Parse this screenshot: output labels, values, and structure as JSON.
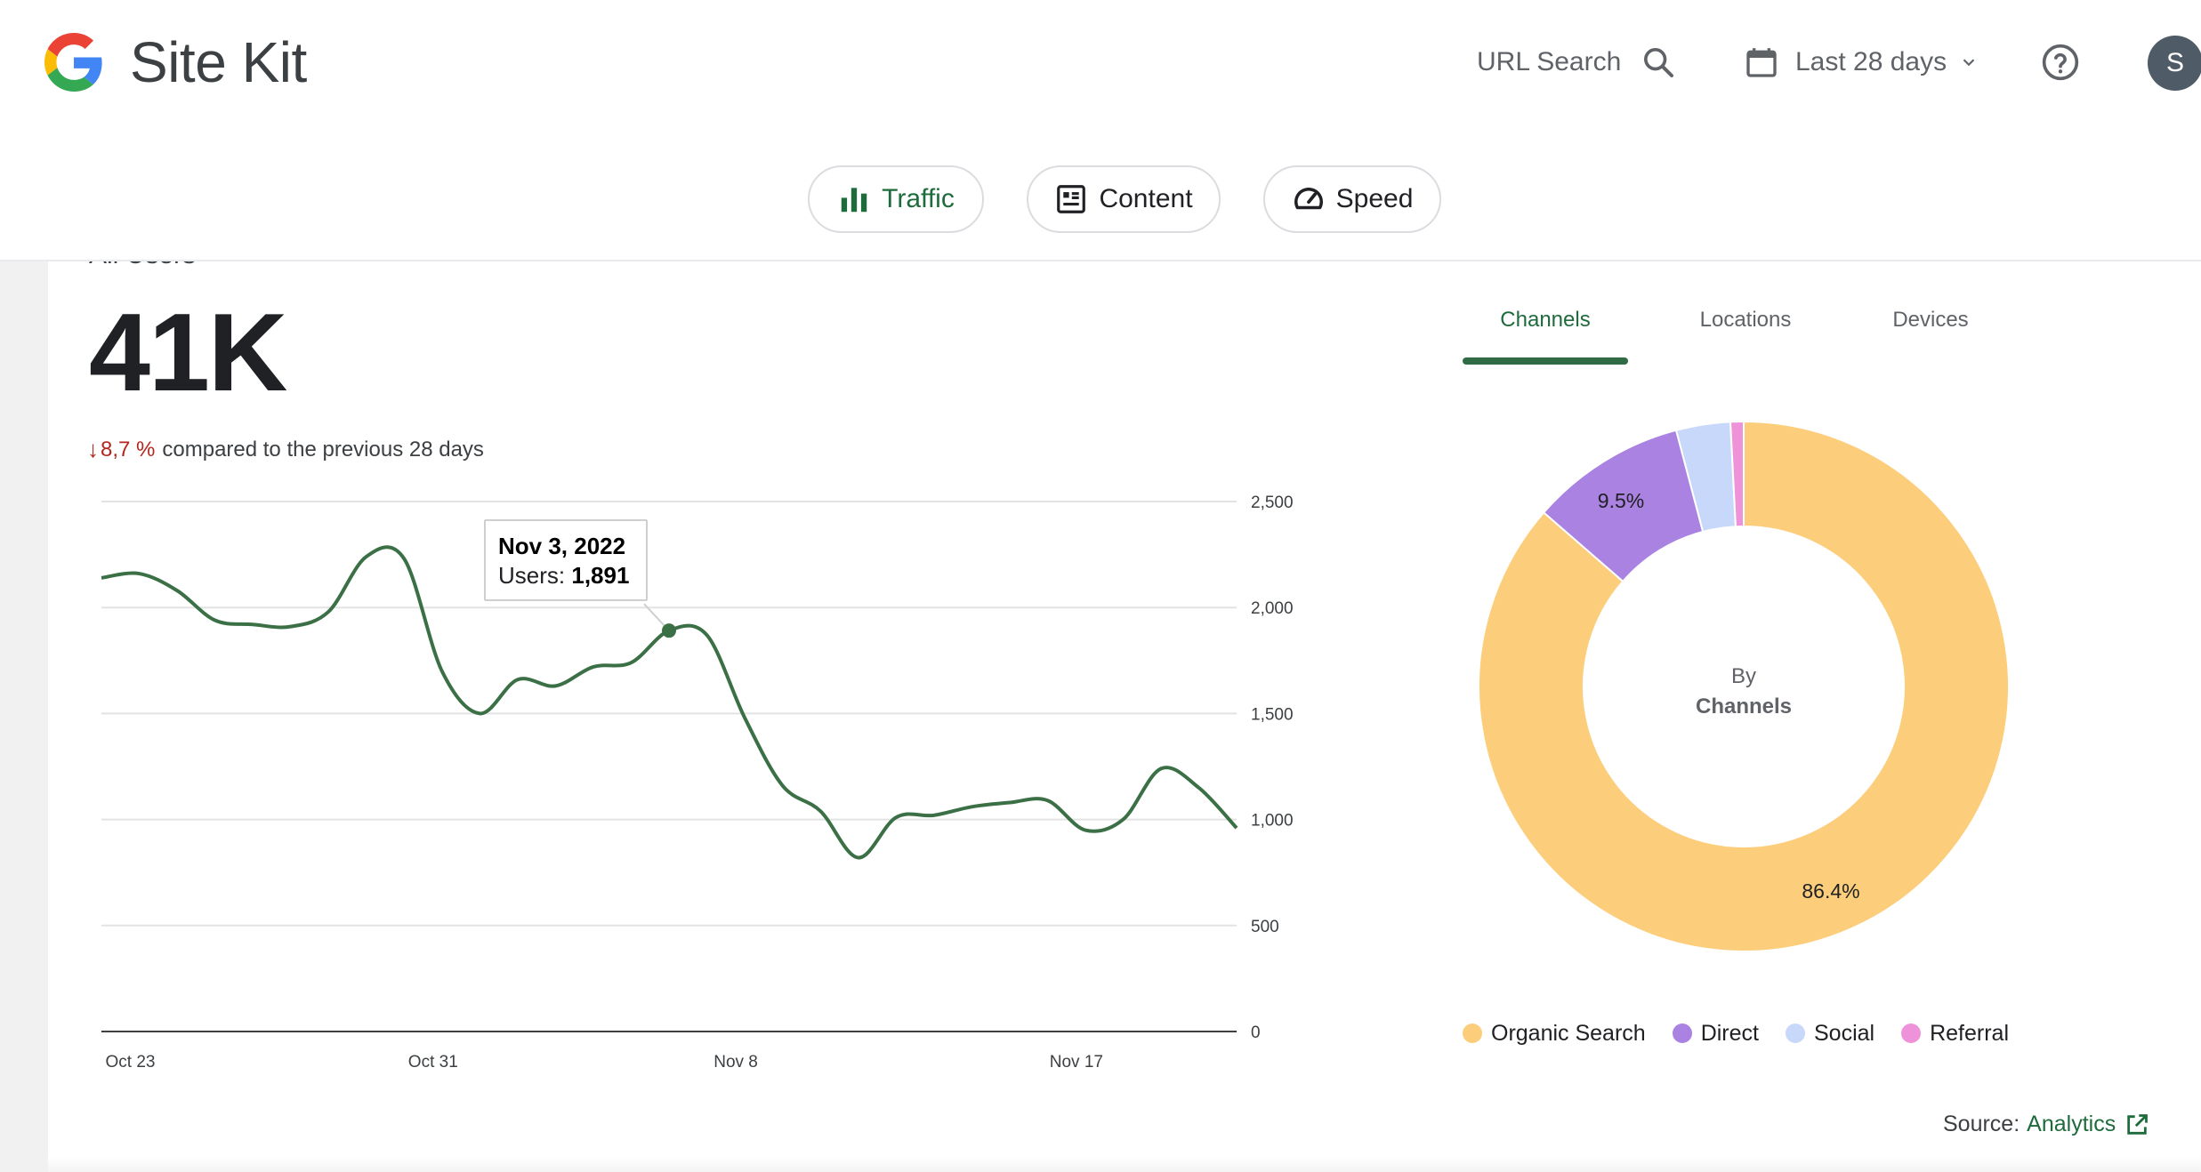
{
  "app": {
    "title": "Site Kit"
  },
  "header": {
    "url_search_label": "URL Search",
    "date_range_label": "Last 28 days",
    "avatar_initial": "S"
  },
  "nav": {
    "tabs": [
      {
        "label": "Traffic",
        "active": true
      },
      {
        "label": "Content",
        "active": false
      },
      {
        "label": "Speed",
        "active": false
      }
    ]
  },
  "metric": {
    "cut_label": "All Users",
    "value": "41K",
    "change_arrow": "↓",
    "change_pct": "8,7 %",
    "change_text": "compared to the previous 28 days"
  },
  "tooltip": {
    "date": "Nov 3, 2022",
    "label": "Users:",
    "value": "1,891"
  },
  "breakdown": {
    "tabs": [
      "Channels",
      "Locations",
      "Devices"
    ],
    "active_tab": "Channels",
    "center_line1": "By",
    "center_line2": "Channels",
    "label_direct": "9.5%",
    "label_organic": "86.4%"
  },
  "source": {
    "prefix": "Source:",
    "link": "Analytics"
  },
  "colors": {
    "accent": "#1e6b3c",
    "line": "#3b7046",
    "negative": "#b3261e"
  },
  "chart_data": [
    {
      "type": "line",
      "series": [
        {
          "values": [
            2140,
            2160,
            2080,
            1940,
            1920,
            1910,
            1980,
            2240,
            2230,
            1700,
            1500,
            1660,
            1630,
            1720,
            1740,
            1891,
            1870,
            1480,
            1160,
            1040,
            820,
            1010,
            1020,
            1060,
            1080,
            1090,
            950,
            1000,
            1240,
            1150,
            960
          ]
        }
      ],
      "x_tick_labels": [
        "Oct 23",
        "Oct 31",
        "Nov 8",
        "Nov 17"
      ],
      "y_tick_labels": [
        "0",
        "500",
        "1,000",
        "1,500",
        "2,000",
        "2,500"
      ],
      "ylim": [
        0,
        2500
      ],
      "grid": true
    },
    {
      "type": "pie",
      "labels": [
        "Organic Search",
        "Direct",
        "Social",
        "Referral"
      ],
      "values": [
        86.4,
        9.5,
        3.3,
        0.8
      ],
      "colors": [
        "#fcce7b",
        "#a982e2",
        "#c8d8fb",
        "#ee92da"
      ]
    }
  ]
}
